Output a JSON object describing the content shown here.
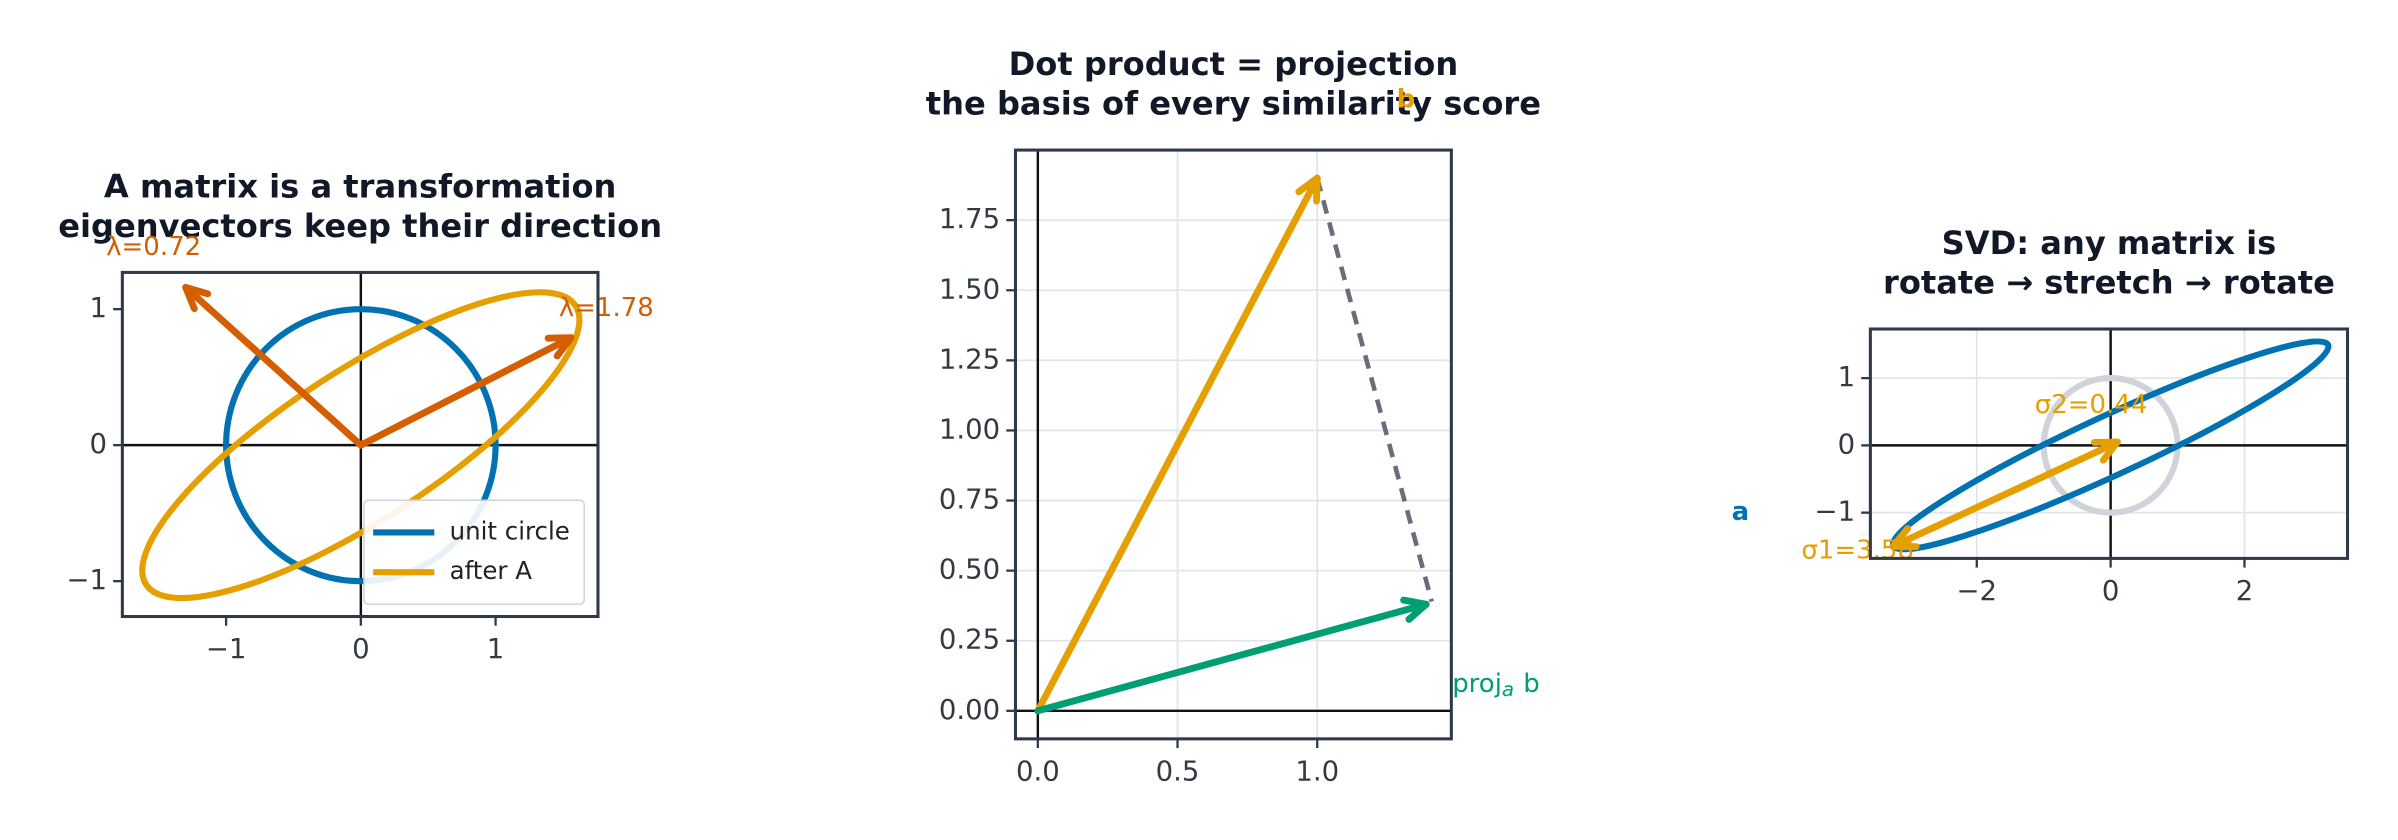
{
  "chart_data": [
    {
      "type": "vector",
      "title": "A matrix is a transformation",
      "subtitle": "eigenvectors keep their direction",
      "xlim": [
        -1.77,
        1.76
      ],
      "ylim": [
        -1.26,
        1.27
      ],
      "xticks": [
        {
          "value": -1,
          "label": "−1"
        },
        0,
        1
      ],
      "yticks": [
        {
          "value": -1,
          "label": "−1"
        },
        0,
        1
      ],
      "grid": false,
      "ellipses": [
        {
          "name": "unit circle",
          "color": "#0072b2",
          "semi_axes": [
            1,
            1
          ],
          "angle": 0
        },
        {
          "name": "after A",
          "color": "#e69f00",
          "semi_axes": [
            1.9,
            0.55
          ],
          "angle": 33
        }
      ],
      "arrows": [
        {
          "label": "λ=1.78",
          "color": "#d55e00",
          "x": 1.56,
          "y": 0.79
        },
        {
          "label": "λ=0.72",
          "color": "#d55e00",
          "x": -1.3,
          "y": 1.16
        }
      ],
      "legend": "lower right"
    },
    {
      "type": "vector",
      "title": "Dot product = projection",
      "subtitle": "the basis of every similarity score",
      "xlim": [
        -0.08,
        1.48
      ],
      "ylim": [
        -0.1,
        2.0
      ],
      "xticks": [
        {
          "value": 0,
          "label": "0.0"
        },
        {
          "value": 0.5,
          "label": "0.5"
        },
        {
          "value": 1,
          "label": "1.0"
        }
      ],
      "yticks": [
        {
          "value": 0,
          "label": "0.00"
        },
        {
          "value": 0.25,
          "label": "0.25"
        },
        {
          "value": 0.5,
          "label": "0.50"
        },
        {
          "value": 0.75,
          "label": "0.75"
        },
        {
          "value": 1,
          "label": "1.00"
        },
        {
          "value": 1.25,
          "label": "1.25"
        },
        {
          "value": 1.5,
          "label": "1.50"
        },
        {
          "value": 1.75,
          "label": "1.75"
        }
      ],
      "grid": true,
      "arrows": [
        {
          "label": "b",
          "color": "#e69f00",
          "x": 1.0,
          "y": 1.9
        },
        {
          "label": "proj",
          "label_sub": "a",
          "label_tail": "b",
          "color": "#009e73",
          "x": 1.39,
          "y": 0.38
        }
      ],
      "lines": [
        {
          "x": [
            1.0,
            1.41
          ],
          "y": [
            1.9,
            0.39
          ],
          "color": "#6b6b7b",
          "dashed": true
        }
      ],
      "annotations": [
        {
          "text": "a",
          "color": "#0072b2"
        }
      ]
    },
    {
      "type": "vector",
      "title": "SVD: any matrix is",
      "subtitle": "rotate → stretch → rotate",
      "xlim": [
        -3.59,
        3.54
      ],
      "ylim": [
        -1.68,
        1.73
      ],
      "xticks": [
        {
          "value": -2,
          "label": "−2"
        },
        0,
        2
      ],
      "yticks": [
        {
          "value": -1,
          "label": "−1"
        },
        0,
        1
      ],
      "grid": true,
      "ellipses": [
        {
          "color": "#d0d3d9",
          "semi_axes": [
            1,
            1
          ],
          "angle": 0
        },
        {
          "color": "#0072b2",
          "semi_axes": [
            3.58,
            0.44
          ],
          "angle": 24.8
        }
      ],
      "arrows": [
        {
          "label": "σ1=3.58",
          "color": "#e69f00",
          "x": -3.25,
          "y": -1.5
        },
        {
          "label": "σ2=0.44",
          "color": "#e69f00",
          "x": 0.1,
          "y": 0.05
        }
      ]
    }
  ]
}
